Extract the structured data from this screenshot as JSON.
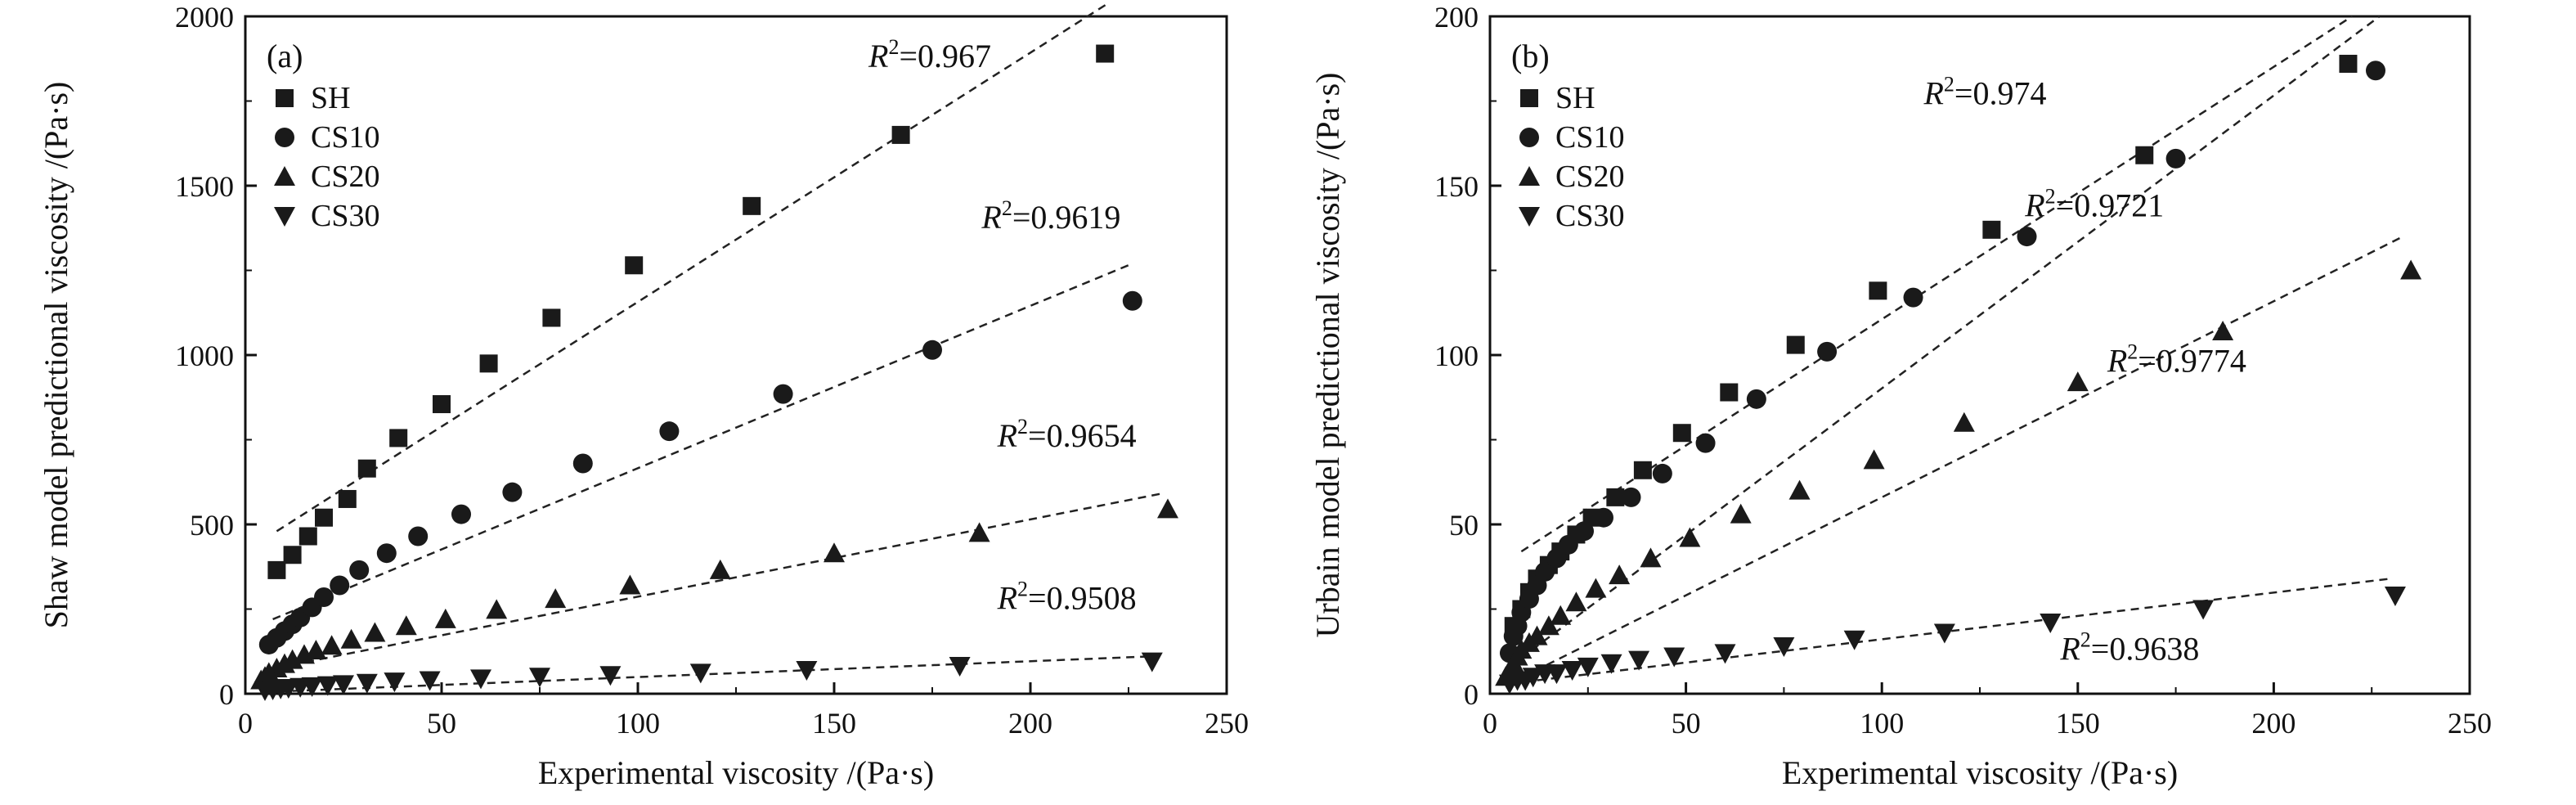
{
  "colors": {
    "marker": "#1a1a1a",
    "axis": "#111111",
    "fit_line": "#222222"
  },
  "chart_data": [
    {
      "type": "scatter",
      "panel_label": "(a)",
      "xlabel": "Experimental viscosity /(Pa·s)",
      "ylabel": "Shaw model predictional viscosity /(Pa·s)",
      "xlim": [
        0,
        250
      ],
      "ylim": [
        0,
        2000
      ],
      "xticks": [
        0,
        50,
        100,
        150,
        200,
        250
      ],
      "yticks": [
        0,
        500,
        1000,
        1500,
        2000
      ],
      "legend_position": "top-left",
      "grid": false,
      "series": [
        {
          "name": "SH",
          "marker": "square",
          "r2_label": "=0.967",
          "r2_at": [
            190,
            1850
          ],
          "fit": [
            [
              8,
              480
            ],
            [
              220,
              2040
            ]
          ],
          "x": [
            8,
            12,
            16,
            20,
            26,
            31,
            39,
            50,
            62,
            78,
            99,
            129,
            167,
            219
          ],
          "y": [
            365,
            410,
            465,
            520,
            575,
            665,
            755,
            855,
            975,
            1110,
            1265,
            1440,
            1650,
            1890
          ]
        },
        {
          "name": "CS10",
          "marker": "circle",
          "r2_label": "=0.9619",
          "r2_at": [
            223,
            1375
          ],
          "fit": [
            [
              7,
              220
            ],
            [
              226,
              1270
            ]
          ],
          "x": [
            6,
            8,
            10,
            12,
            14,
            17,
            20,
            24,
            29,
            36,
            44,
            55,
            68,
            86,
            108,
            137,
            175,
            226
          ],
          "y": [
            145,
            165,
            185,
            205,
            225,
            255,
            285,
            320,
            365,
            415,
            465,
            530,
            595,
            680,
            775,
            885,
            1015,
            1160
          ]
        },
        {
          "name": "CS20",
          "marker": "triangle-up",
          "r2_label": "=0.9654",
          "r2_at": [
            227,
            730
          ],
          "fit": [
            [
              5,
              70
            ],
            [
              233,
              590
            ]
          ],
          "x": [
            4,
            5,
            6,
            8,
            10,
            12,
            15,
            18,
            22,
            27,
            33,
            41,
            51,
            64,
            79,
            98,
            121,
            150,
            187,
            235
          ],
          "y": [
            40,
            50,
            62,
            75,
            88,
            100,
            115,
            128,
            142,
            160,
            180,
            200,
            220,
            248,
            280,
            320,
            365,
            415,
            475,
            545
          ]
        },
        {
          "name": "CS30",
          "marker": "triangle-down",
          "r2_label": "=0.9508",
          "r2_at": [
            227,
            250
          ],
          "fit": [
            [
              5,
              5
            ],
            [
              230,
              110
            ]
          ],
          "x": [
            5,
            7,
            9,
            11,
            14,
            17,
            21,
            25,
            31,
            38,
            47,
            60,
            75,
            93,
            116,
            143,
            182,
            231
          ],
          "y": [
            10,
            12,
            15,
            17,
            20,
            22,
            25,
            28,
            32,
            36,
            40,
            45,
            50,
            55,
            62,
            70,
            82,
            95
          ]
        }
      ]
    },
    {
      "type": "scatter",
      "panel_label": "(b)",
      "xlabel": "Experimental viscosity /(Pa·s)",
      "ylabel": "Urbain model predictional viscosity /(Pa·s)",
      "xlim": [
        0,
        250
      ],
      "ylim": [
        0,
        200
      ],
      "xticks": [
        0,
        50,
        100,
        150,
        200,
        250
      ],
      "yticks": [
        0,
        50,
        100,
        150,
        200
      ],
      "legend_position": "top-left",
      "grid": false,
      "series": [
        {
          "name": "SH",
          "marker": "square",
          "r2_label": "=0.974",
          "r2_at": [
            142,
            174
          ],
          "fit": [
            [
              8,
              42
            ],
            [
              220,
              200
            ]
          ],
          "x": [
            6,
            8,
            10,
            12,
            15,
            18,
            22,
            26,
            32,
            39,
            49,
            61,
            78,
            99,
            128,
            167,
            219
          ],
          "y": [
            20,
            25,
            30,
            34,
            38,
            42,
            47,
            52,
            58,
            66,
            77,
            89,
            103,
            119,
            137,
            159,
            186
          ]
        },
        {
          "name": "CS10",
          "marker": "circle",
          "r2_label": "=0.9721",
          "r2_at": [
            172,
            141
          ],
          "fit": [
            [
              5,
              8
            ],
            [
              227,
              200
            ]
          ],
          "x": [
            5,
            6,
            7,
            8,
            10,
            12,
            14,
            17,
            20,
            24,
            29,
            36,
            44,
            55,
            68,
            86,
            108,
            137,
            175,
            226
          ],
          "y": [
            12,
            17,
            20,
            24,
            28,
            32,
            36,
            40,
            44,
            48,
            52,
            58,
            65,
            74,
            87,
            101,
            117,
            135,
            158,
            184
          ]
        },
        {
          "name": "CS20",
          "marker": "triangle-up",
          "r2_label": "=0.9774",
          "r2_at": [
            193,
            95
          ],
          "fit": [
            [
              5,
              3
            ],
            [
              233,
              135
            ]
          ],
          "x": [
            4,
            5,
            6,
            7,
            8,
            10,
            12,
            15,
            18,
            22,
            27,
            33,
            41,
            51,
            64,
            79,
            98,
            121,
            150,
            187,
            235
          ],
          "y": [
            5,
            7,
            9,
            11,
            13,
            15,
            17,
            20,
            23,
            27,
            31,
            35,
            40,
            46,
            53,
            60,
            69,
            80,
            92,
            107,
            125
          ]
        },
        {
          "name": "CS30",
          "marker": "triangle-down",
          "r2_label": "=0.9638",
          "r2_at": [
            181,
            10
          ],
          "fit": [
            [
              5,
              3
            ],
            [
              230,
              34
            ]
          ],
          "x": [
            5,
            7,
            9,
            11,
            14,
            17,
            21,
            25,
            31,
            38,
            47,
            60,
            75,
            93,
            116,
            143,
            182,
            231
          ],
          "y": [
            3,
            4,
            4,
            5,
            6,
            6,
            7,
            8,
            9,
            10,
            11,
            12,
            14,
            16,
            18,
            21,
            25,
            29
          ]
        }
      ]
    }
  ]
}
